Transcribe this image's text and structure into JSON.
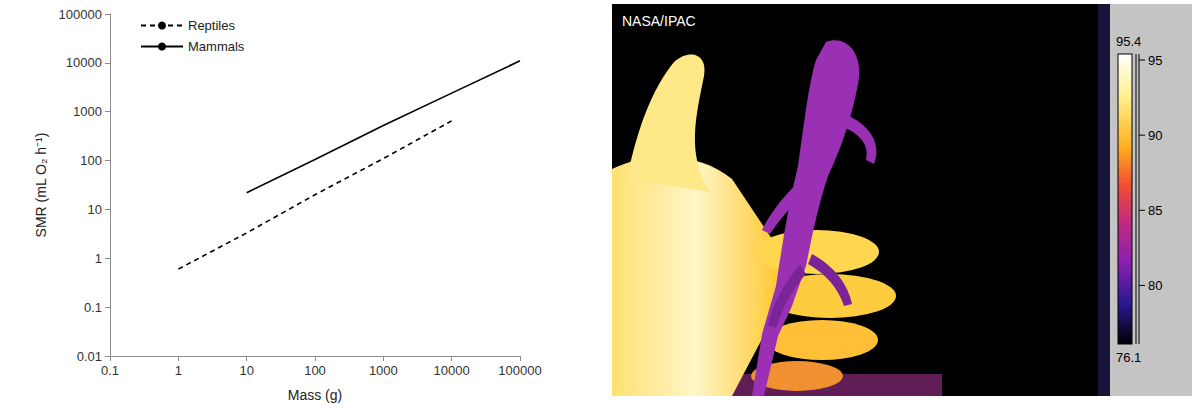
{
  "chart_data": {
    "type": "line",
    "x_label": "Mass (g)",
    "y_label": "SMR (mL O₂ h⁻¹)",
    "log": true,
    "grid": false,
    "legend": "upper left",
    "xlim": [
      0.1,
      100000
    ],
    "xticks": [
      0.1,
      1,
      10,
      100,
      1000,
      10000,
      100000
    ],
    "ylim": [
      0.01,
      100000
    ],
    "yticks": [
      0.01,
      0.1,
      1,
      10,
      100,
      1000,
      10000,
      100000
    ],
    "series": [
      {
        "name": "Reptiles",
        "color": "#000000",
        "line_style": "dashed",
        "x": [
          1,
          10,
          100,
          1000,
          10000
        ],
        "values": [
          0.6,
          3.3,
          20,
          110,
          650
        ]
      },
      {
        "name": "Mammals",
        "color": "#000000",
        "line_style": "solid",
        "x": [
          10,
          100,
          1000,
          10000,
          100000
        ],
        "values": [
          22,
          105,
          520,
          2400,
          11000
        ]
      }
    ]
  },
  "thermal_image": {
    "credit": "NASA/IPAC",
    "colorbar": {
      "range": [
        76.1,
        95.4
      ],
      "ticks": [
        80,
        85,
        90,
        95
      ]
    }
  }
}
